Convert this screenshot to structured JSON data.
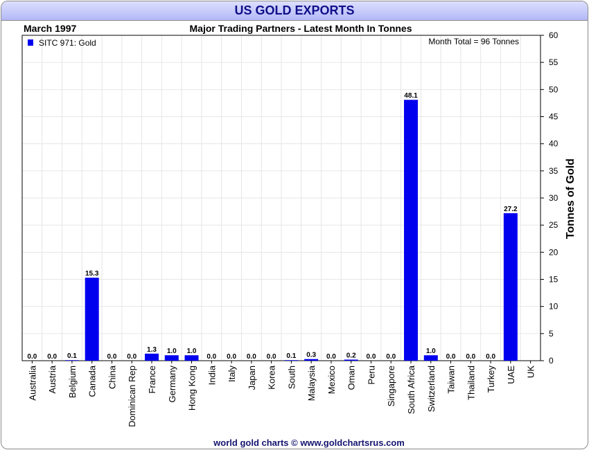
{
  "chart_data": {
    "type": "bar",
    "title": "US GOLD EXPORTS",
    "subtitle": "Major Trading Partners - Latest Month In Tonnes",
    "period": "March 1997",
    "legend": "SITC 971: Gold",
    "legend_position": "top-left",
    "annotation": "Month Total = 96 Tonnes",
    "ylabel": "Tonnes of Gold",
    "xlabel": "",
    "ylim": [
      0,
      60
    ],
    "yticks": [
      0,
      5,
      10,
      15,
      20,
      25,
      30,
      35,
      40,
      45,
      50,
      55,
      60
    ],
    "grid": true,
    "bar_color": "#0000ee",
    "categories": [
      "Australia",
      "Austria",
      "Belgium",
      "Canada",
      "China",
      "Dominican Rep",
      "France",
      "Germany",
      "Hong Kong",
      "India",
      "Italy",
      "Japan",
      "Korea",
      "South",
      "Malaysia",
      "Mexico",
      "Oman",
      "Peru",
      "Singapore",
      "South Africa",
      "Switzerland",
      "Taiwan",
      "Thailand",
      "Turkey",
      "UAE",
      "UK"
    ],
    "values": [
      0.0,
      0.0,
      0.1,
      15.3,
      0.0,
      0.0,
      1.3,
      1.0,
      1.0,
      0.0,
      0.0,
      0.0,
      0.0,
      0.1,
      0.3,
      0.0,
      0.2,
      0.0,
      0.0,
      48.1,
      1.0,
      0.0,
      0.0,
      0.0,
      27.2,
      null
    ],
    "value_labels": [
      "0.0",
      "0.0",
      "0.1",
      "15.3",
      "0.0",
      "0.0",
      "1.3",
      "1.0",
      "1.0",
      "0.0",
      "0.0",
      "0.0",
      "0.0",
      "0.1",
      "0.3",
      "0.0",
      "0.2",
      "0.0",
      "0.0",
      "48.1",
      "1.0",
      "0.0",
      "0.0",
      "0.0",
      "27.2",
      ""
    ]
  },
  "footer": "world gold charts © www.goldchartsrus.com"
}
